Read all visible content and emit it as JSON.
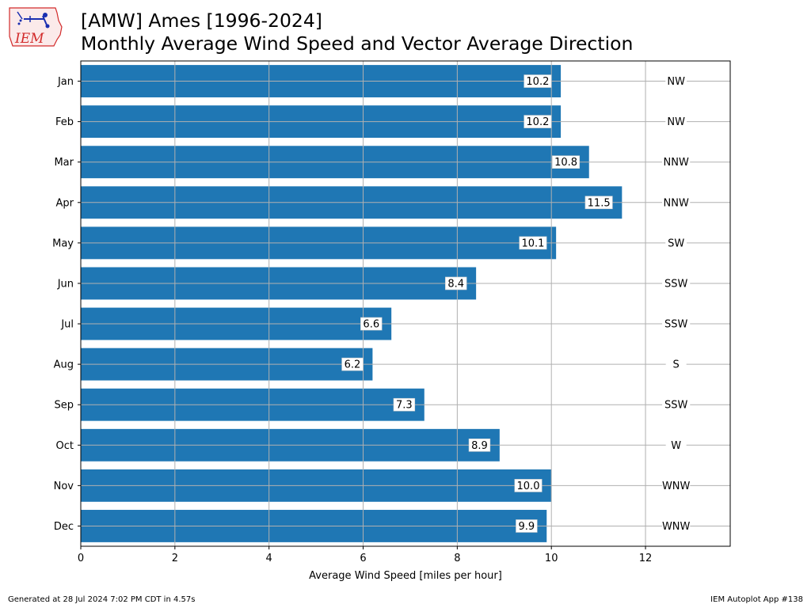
{
  "title": {
    "line1": "[AMW] Ames [1996-2024]",
    "line2": "Monthly Average Wind Speed and Vector Average Direction"
  },
  "logo": {
    "text": "IEM",
    "icon": "iem-logo-icon"
  },
  "footer": {
    "left": "Generated at 28 Jul 2024 7:02 PM CDT in 4.57s",
    "right": "IEM Autoplot App #138"
  },
  "colors": {
    "bar": "#1f77b4",
    "grid": "#b0b0b0",
    "logo_red": "#d22b2b",
    "logo_blue": "#1a2fb0"
  },
  "chart_data": {
    "type": "bar",
    "orientation": "horizontal",
    "categories": [
      "Jan",
      "Feb",
      "Mar",
      "Apr",
      "May",
      "Jun",
      "Jul",
      "Aug",
      "Sep",
      "Oct",
      "Nov",
      "Dec"
    ],
    "values": [
      10.2,
      10.2,
      10.8,
      11.5,
      10.1,
      8.4,
      6.6,
      6.2,
      7.3,
      8.9,
      10.0,
      9.9
    ],
    "value_labels": [
      "10.2",
      "10.2",
      "10.8",
      "11.5",
      "10.1",
      "8.4",
      "6.6",
      "6.2",
      "7.3",
      "8.9",
      "10.0",
      "9.9"
    ],
    "directions": [
      "NW",
      "NW",
      "NNW",
      "NNW",
      "SW",
      "SSW",
      "SSW",
      "S",
      "SSW",
      "W",
      "WNW",
      "WNW"
    ],
    "xlabel": "Average Wind Speed [miles per hour]",
    "xlim": [
      0,
      13.8
    ],
    "xticks": [
      0,
      2,
      4,
      6,
      8,
      10,
      12
    ],
    "direction_label_x": 12.65,
    "grid": true
  }
}
